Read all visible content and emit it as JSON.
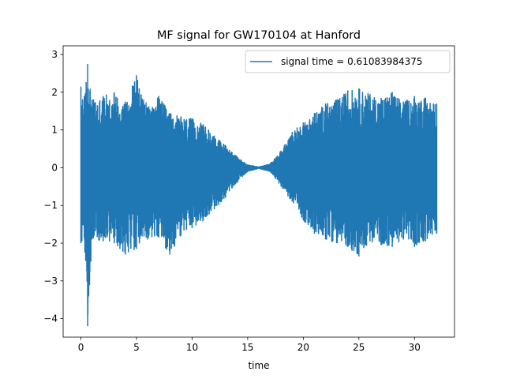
{
  "chart_data": {
    "type": "line",
    "title": "MF signal for GW170104 at Hanford",
    "xlabel": "time",
    "ylabel": "",
    "xlim": [
      -1.6,
      33.6
    ],
    "ylim": [
      -4.49,
      3.23
    ],
    "xticks": [
      0,
      5,
      10,
      15,
      20,
      25,
      30
    ],
    "yticks": [
      -4,
      -3,
      -2,
      -1,
      0,
      1,
      2,
      3
    ],
    "xtick_labels": [
      "0",
      "5",
      "10",
      "15",
      "20",
      "25",
      "30"
    ],
    "ytick_labels": [
      "−4",
      "−3",
      "−2",
      "−1",
      "0",
      "1",
      "2",
      "3"
    ],
    "grid": false,
    "legend": {
      "position": "upper right"
    },
    "series": [
      {
        "name": "signal time = 0.61083984375",
        "color": "#1f77b4",
        "x": [
          0.0,
          0.3,
          0.61,
          1.0,
          2.0,
          3.0,
          4.0,
          5.0,
          6.0,
          7.0,
          8.0,
          9.0,
          10.0,
          11.0,
          12.0,
          13.0,
          14.0,
          15.0,
          16.0,
          17.0,
          18.0,
          19.0,
          20.0,
          21.0,
          22.0,
          23.0,
          24.0,
          25.0,
          26.0,
          27.0,
          28.0,
          29.0,
          30.0,
          31.0,
          32.0
        ],
        "upper_envelope": [
          2.15,
          1.9,
          2.75,
          1.8,
          1.9,
          2.0,
          1.75,
          2.45,
          1.6,
          1.9,
          1.45,
          1.35,
          1.3,
          1.15,
          0.85,
          0.6,
          0.3,
          0.08,
          0.02,
          0.1,
          0.45,
          0.95,
          1.2,
          1.45,
          1.7,
          1.8,
          2.05,
          2.1,
          1.95,
          1.85,
          2.0,
          1.75,
          1.9,
          1.85,
          1.7
        ],
        "lower_envelope": [
          -2.0,
          -1.85,
          -4.2,
          -1.9,
          -1.95,
          -2.0,
          -2.3,
          -2.15,
          -1.9,
          -1.85,
          -2.3,
          -1.8,
          -1.6,
          -1.4,
          -1.1,
          -0.8,
          -0.4,
          -0.1,
          -0.02,
          -0.1,
          -0.5,
          -0.9,
          -1.4,
          -1.75,
          -1.9,
          -2.0,
          -2.1,
          -2.35,
          -1.95,
          -2.05,
          -2.1,
          -1.9,
          -2.1,
          -1.95,
          -1.75
        ]
      }
    ]
  }
}
